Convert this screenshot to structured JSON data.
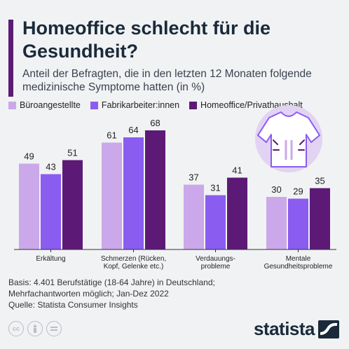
{
  "title": "Homeoffice schlecht für die Gesundheit?",
  "subtitle": "Anteil der Befragten, die in den letzten 12 Monaten folgende medizinische Symptome hatten (in %)",
  "colors": {
    "accent": "#5c1a76",
    "series": [
      "#cba8e9",
      "#8b5cf0",
      "#5c1a76"
    ],
    "decor": "#e2d3f3"
  },
  "footnote": {
    "basis": "Basis: 4.401 Berufstätige (18-64 Jahre) in Deutschland;",
    "multi": "Mehrfachantworten möglich; Jan-Dez 2022",
    "source": "Quelle: Statista Consumer Insights"
  },
  "license_icons": [
    "cc-icon",
    "person-icon",
    "equals-icon"
  ],
  "brand": "statista",
  "chart_data": {
    "type": "bar",
    "categories": [
      [
        "Erkältung"
      ],
      [
        "Schmerzen (Rücken,",
        "Kopf, Gelenke etc.)"
      ],
      [
        "Verdauungs-",
        "probleme"
      ],
      [
        "Mentale",
        "Gesundheitsprobleme"
      ]
    ],
    "series": [
      {
        "name": "Büroangestellte",
        "values": [
          49,
          61,
          37,
          30
        ]
      },
      {
        "name": "Fabrikarbeiter:innen",
        "values": [
          43,
          64,
          31,
          29
        ]
      },
      {
        "name": "Homeoffice/Privathaushalt",
        "values": [
          51,
          68,
          41,
          35
        ]
      }
    ],
    "ylim": [
      0,
      68
    ],
    "grid": false,
    "legend": "top"
  }
}
